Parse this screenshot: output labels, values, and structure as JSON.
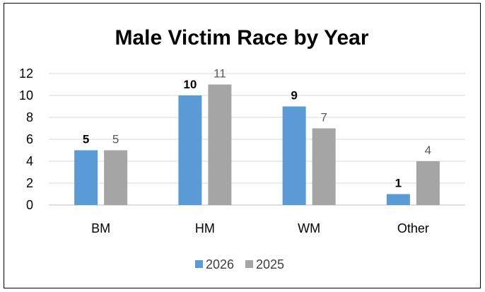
{
  "chart_data": {
    "type": "bar",
    "title": "Male Victim Race by Year",
    "categories": [
      "BM",
      "HM",
      "WM",
      "Other"
    ],
    "series": [
      {
        "name": "2026",
        "values": [
          5,
          10,
          9,
          1
        ],
        "color": "#5b9bd5",
        "labels_bold": true
      },
      {
        "name": "2025",
        "values": [
          5,
          11,
          7,
          4
        ],
        "color": "#a5a5a5",
        "labels_bold": false
      }
    ],
    "yticks": [
      "0",
      "2",
      "4",
      "6",
      "8",
      "10",
      "12"
    ],
    "ylim": [
      0,
      12
    ],
    "grid": true,
    "legend": "bottom"
  }
}
